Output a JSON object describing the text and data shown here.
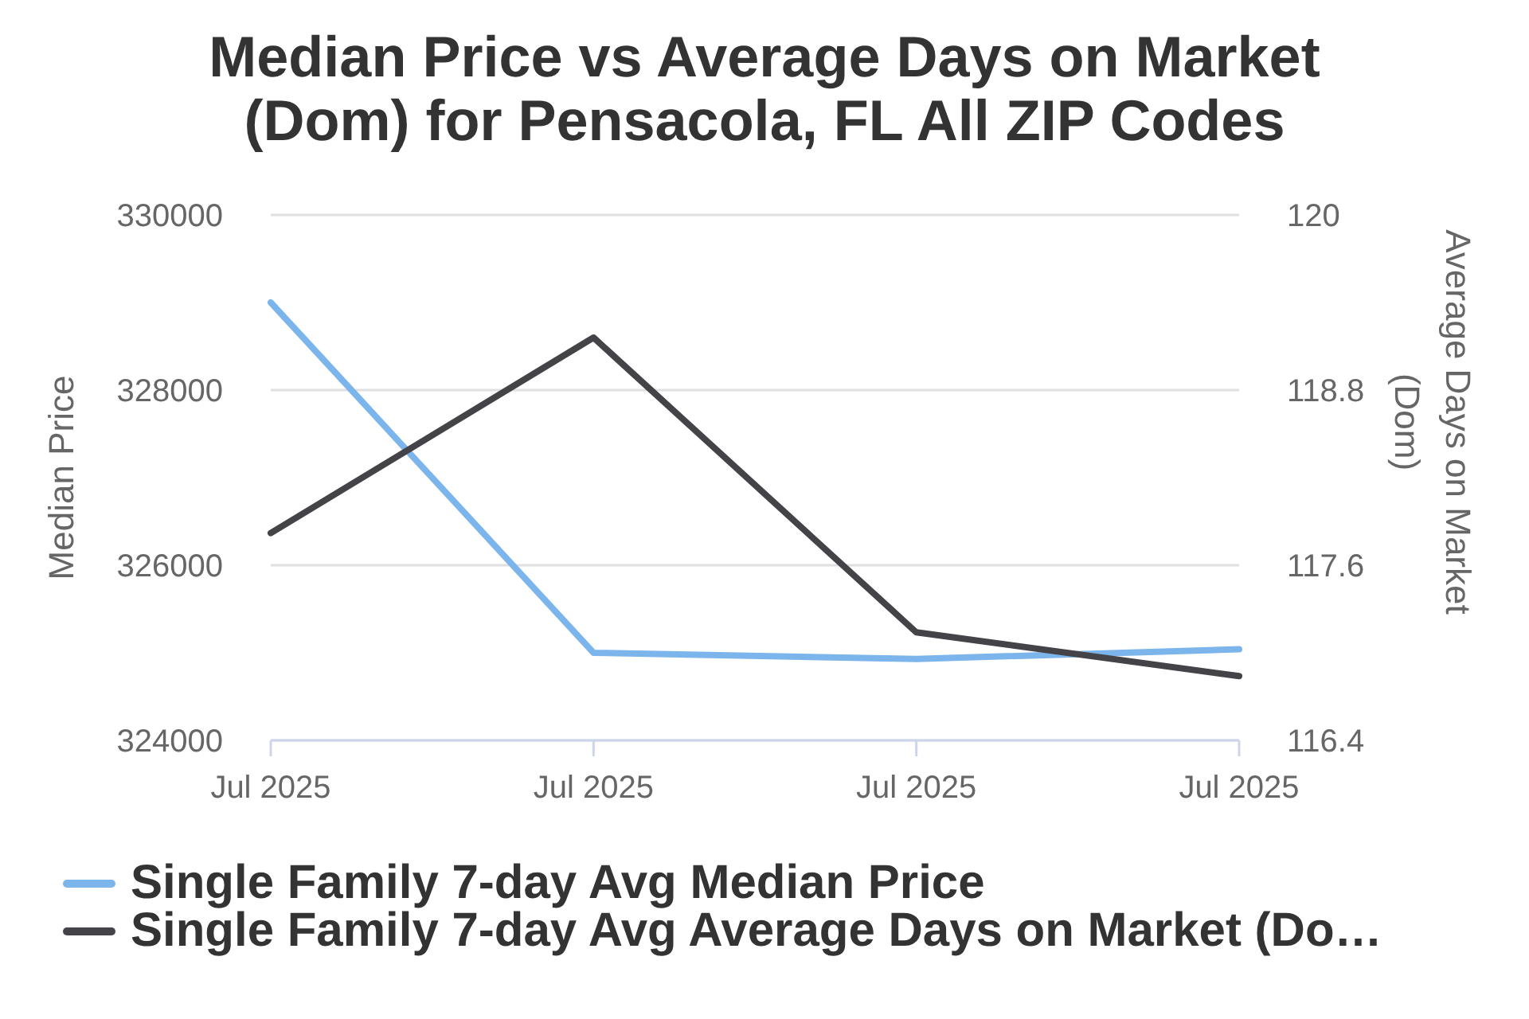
{
  "chart_data": {
    "type": "line",
    "title": "Median Price vs Average Days on Market (Dom) for Pensacola, FL All ZIP Codes",
    "ylabel": "Median Price",
    "y2label": "Average Days on Market (Dom)",
    "categories": [
      "Jul 2025",
      "Jul 2025",
      "Jul 2025",
      "Jul 2025"
    ],
    "series": [
      {
        "name": "Single Family 7-day Avg Median Price",
        "color": "#7cb5ec",
        "values": [
          329000,
          325000,
          324930,
          325040
        ]
      },
      {
        "name": "Single Family 7-day Avg Average Days on Market (Do…",
        "color": "#434348",
        "values": [
          117.82,
          119.16,
          117.14,
          116.84
        ],
        "axis": "y2"
      }
    ],
    "ylim": [
      324000,
      330000
    ],
    "yticks": [
      324000,
      326000,
      328000,
      330000
    ],
    "y2lim": [
      116.4,
      120
    ],
    "y2ticks": [
      116.4,
      117.6,
      118.8,
      120
    ],
    "grid": "y",
    "legend": "bottom",
    "marker": "none",
    "line_style": "solid"
  }
}
